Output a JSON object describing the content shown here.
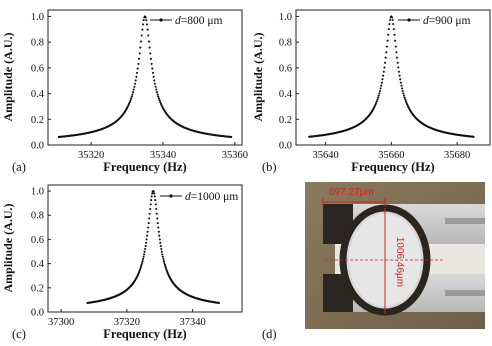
{
  "panels": [
    {
      "label": "(a)",
      "legend_prefix": "d",
      "legend_suffix": "=800 μm",
      "xlabel": "Frequency (Hz)",
      "ylabel": "Amplitude (A.U.)",
      "xticks": [
        "35320",
        "35340",
        "35360"
      ],
      "yticks": [
        "0.0",
        "0.2",
        "0.4",
        "0.6",
        "0.8",
        "1.0"
      ]
    },
    {
      "label": "(b)",
      "legend_prefix": "d",
      "legend_suffix": "=900 μm",
      "xlabel": "Frequency (Hz)",
      "ylabel": "Amplitude (A.U.)",
      "xticks": [
        "35640",
        "35660",
        "35680"
      ],
      "yticks": [
        "0.0",
        "0.2",
        "0.4",
        "0.6",
        "0.8",
        "1.0"
      ]
    },
    {
      "label": "(c)",
      "legend_prefix": "d",
      "legend_suffix": "=1000 μm",
      "xlabel": "Frequency (Hz)",
      "ylabel": "Amplitude (A.U.)",
      "xticks": [
        "37300",
        "37320",
        "37340"
      ],
      "yticks": [
        "0.0",
        "0.2",
        "0.4",
        "0.6",
        "0.8",
        "1.0"
      ]
    }
  ],
  "photo": {
    "label": "(d)",
    "width_label": "697.27μm",
    "height_label": "1006.46μm"
  },
  "colors": {
    "curve": "#111111",
    "annotation": "#d4231f"
  },
  "chart_data": [
    {
      "type": "scatter",
      "xlabel": "Frequency (Hz)",
      "ylabel": "Amplitude (A.U.)",
      "xlim": [
        35308,
        35362
      ],
      "ylim": [
        0.0,
        1.05
      ],
      "xticks": [
        35320,
        35340,
        35360
      ],
      "yticks": [
        0.0,
        0.2,
        0.4,
        0.6,
        0.8,
        1.0
      ],
      "series": [
        {
          "name": "d=800 μm",
          "peak_x": 35335,
          "peak_y": 1.0,
          "halfwidth": 1.5,
          "x_range": [
            35311,
            35359
          ]
        }
      ]
    },
    {
      "type": "scatter",
      "xlabel": "Frequency (Hz)",
      "ylabel": "Amplitude (A.U.)",
      "xlim": [
        35631,
        35690
      ],
      "ylim": [
        0.0,
        1.05
      ],
      "xticks": [
        35640,
        35660,
        35680
      ],
      "yticks": [
        0.0,
        0.2,
        0.4,
        0.6,
        0.8,
        1.0
      ],
      "series": [
        {
          "name": "d=900 μm",
          "peak_x": 35660,
          "peak_y": 1.0,
          "halfwidth": 1.6,
          "x_range": [
            35635,
            35685
          ]
        }
      ]
    },
    {
      "type": "scatter",
      "xlabel": "Frequency (Hz)",
      "ylabel": "Amplitude (A.U.)",
      "xlim": [
        37296,
        37355
      ],
      "ylim": [
        0.0,
        1.05
      ],
      "xticks": [
        37300,
        37320,
        37340
      ],
      "yticks": [
        0.0,
        0.2,
        0.4,
        0.6,
        0.8,
        1.0
      ],
      "series": [
        {
          "name": "d=1000 μm",
          "peak_x": 37328,
          "peak_y": 1.0,
          "halfwidth": 1.5,
          "x_range": [
            37308,
            37348
          ]
        }
      ]
    }
  ]
}
